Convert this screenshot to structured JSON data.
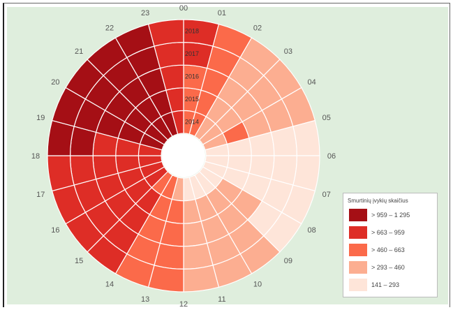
{
  "chart_data": {
    "type": "heatmap",
    "layout": "radial",
    "hours": [
      "00",
      "01",
      "02",
      "03",
      "04",
      "05",
      "06",
      "07",
      "08",
      "09",
      "10",
      "11",
      "12",
      "13",
      "14",
      "15",
      "16",
      "17",
      "18",
      "19",
      "20",
      "21",
      "22",
      "23"
    ],
    "years": [
      "2014",
      "2015",
      "2016",
      "2017",
      "2018"
    ],
    "legend": {
      "title": "Smurtinių įvykių skaičius",
      "classes": [
        {
          "label": "> 959 – 1 295",
          "color": "#a50f15"
        },
        {
          "label": "> 663 – 959",
          "color": "#de2d26"
        },
        {
          "label": "> 460 – 663",
          "color": "#fb6a4a"
        },
        {
          "label": "> 293 – 460",
          "color": "#fcae91"
        },
        {
          "label": "141 – 293",
          "color": "#fee5d9"
        }
      ]
    },
    "classes_by_hour_year_inner_to_outer": [
      [
        2,
        2,
        2,
        1,
        1
      ],
      [
        2,
        2,
        2,
        2,
        2
      ],
      [
        3,
        3,
        3,
        3,
        3
      ],
      [
        3,
        3,
        3,
        3,
        3
      ],
      [
        3,
        2,
        3,
        3,
        3
      ],
      [
        4,
        4,
        4,
        4,
        4
      ],
      [
        4,
        4,
        4,
        4,
        4
      ],
      [
        4,
        4,
        4,
        4,
        4
      ],
      [
        4,
        3,
        3,
        4,
        4
      ],
      [
        4,
        3,
        3,
        3,
        3
      ],
      [
        4,
        3,
        3,
        3,
        3
      ],
      [
        4,
        3,
        3,
        3,
        3
      ],
      [
        3,
        2,
        2,
        2,
        2
      ],
      [
        2,
        2,
        2,
        2,
        2
      ],
      [
        2,
        1,
        1,
        1,
        1
      ],
      [
        1,
        1,
        1,
        1,
        1
      ],
      [
        1,
        1,
        1,
        1,
        1
      ],
      [
        1,
        1,
        1,
        1,
        1
      ],
      [
        1,
        1,
        1,
        0,
        0
      ],
      [
        0,
        0,
        0,
        0,
        0
      ],
      [
        0,
        0,
        0,
        0,
        0
      ],
      [
        0,
        0,
        0,
        0,
        0
      ],
      [
        0,
        0,
        0,
        0,
        0
      ],
      [
        1,
        1,
        1,
        1,
        1
      ]
    ]
  }
}
